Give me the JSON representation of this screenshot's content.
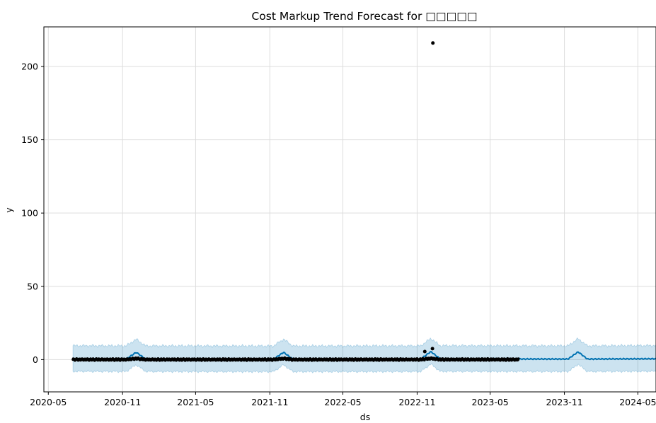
{
  "chart_data": {
    "type": "line",
    "title": "Cost Markup Trend Forecast for □□□□□",
    "xlabel": "ds",
    "ylabel": "y",
    "x_range": [
      "2020-04-20",
      "2024-06-15"
    ],
    "ylim": [
      -22,
      227
    ],
    "grid": true,
    "x_ticks": [
      "2020-05",
      "2020-11",
      "2021-05",
      "2021-11",
      "2022-05",
      "2022-11",
      "2023-05",
      "2023-11",
      "2024-05"
    ],
    "x_tick_dates": [
      "2020-05-01",
      "2020-11-01",
      "2021-05-01",
      "2021-11-01",
      "2022-05-01",
      "2022-11-01",
      "2023-05-01",
      "2023-11-01",
      "2024-05-01"
    ],
    "y_ticks": [
      0,
      50,
      100,
      150,
      200
    ],
    "colors": {
      "forecast_line": "#0072B2",
      "uncertainty_band": "#0072B2",
      "observed_points": "#000000",
      "grid": "#dddddd"
    },
    "observed_range": [
      "2020-07-01",
      "2023-07-10"
    ],
    "forecast_range": [
      "2020-07-01",
      "2024-06-15"
    ],
    "outliers": [
      {
        "x": "2022-12-10",
        "y": 216
      },
      {
        "x": "2022-12-09",
        "y": 7.5
      },
      {
        "x": "2022-11-20",
        "y": 5.5
      }
    ],
    "series": [
      {
        "type": "forecast_trend",
        "points": [
          {
            "x": "2020-07-01",
            "y": 0.5
          },
          {
            "x": "2020-11-10",
            "y": 0.4
          },
          {
            "x": "2020-12-05",
            "y": 5.0
          },
          {
            "x": "2020-12-28",
            "y": 0.4
          },
          {
            "x": "2021-11-10",
            "y": 0.3
          },
          {
            "x": "2021-12-05",
            "y": 5.0
          },
          {
            "x": "2021-12-28",
            "y": 0.3
          },
          {
            "x": "2022-11-10",
            "y": 0.4
          },
          {
            "x": "2022-12-05",
            "y": 5.5
          },
          {
            "x": "2022-12-28",
            "y": 0.5
          },
          {
            "x": "2023-11-10",
            "y": 0.4
          },
          {
            "x": "2023-12-05",
            "y": 5.3
          },
          {
            "x": "2023-12-28",
            "y": 0.4
          },
          {
            "x": "2024-06-15",
            "y": 0.6
          }
        ],
        "lower": -8.5,
        "upper": 9.0
      }
    ]
  }
}
